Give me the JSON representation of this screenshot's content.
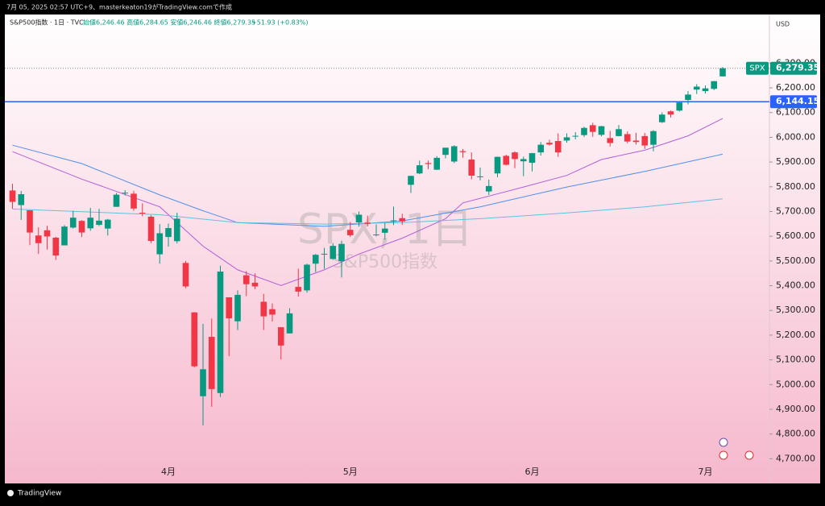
{
  "header": {
    "created": "7月 05, 2025 02:57 UTC+9、masterkeaton19がTradingView.comで作成",
    "symbol_line": "S&P500指数 · 1日 · TVC",
    "ohlc": "始値6,246.46 高値6,284.65 安値6,246.46 終値6,279.35",
    "change": "+51.93 (+0.83%)",
    "currency": "USD",
    "watermark_title": "SPX, 1日",
    "watermark_sub": "S&P500指数",
    "footer": "TradingView"
  },
  "chart_data": {
    "type": "candlestick",
    "up_color": "#089981",
    "down_color": "#f23645",
    "grid": false,
    "categories": [
      null,
      null,
      null,
      null,
      null,
      null,
      null,
      null,
      null,
      null,
      null,
      null,
      null,
      null,
      null,
      null,
      null,
      null,
      "4月",
      null,
      null,
      null,
      null,
      null,
      null,
      null,
      null,
      null,
      null,
      null,
      null,
      null,
      null,
      null,
      null,
      null,
      null,
      null,
      null,
      "5月",
      null,
      null,
      null,
      null,
      null,
      null,
      null,
      null,
      null,
      null,
      null,
      null,
      null,
      null,
      null,
      null,
      null,
      null,
      null,
      null,
      "6月",
      null,
      null,
      null,
      null,
      null,
      null,
      null,
      null,
      null,
      null,
      null,
      null,
      null,
      null,
      null,
      null,
      null,
      null,
      null,
      "7月",
      null,
      null
    ],
    "series": [
      {
        "name": "SPX",
        "open": [
          5785,
          5726,
          5705,
          5603,
          5624,
          5594,
          5563,
          5635,
          5662,
          5632,
          5646,
          5631,
          5719,
          5775,
          5772,
          5695,
          5679,
          5527,
          5597,
          5580,
          5492,
          5292,
          4953,
          5193,
          4966,
          5353,
          5256,
          5442,
          5412,
          5335,
          5305,
          5232,
          5207,
          5395,
          5381,
          5489,
          5529,
          5508,
          5499,
          5626,
          5656,
          5655,
          5606,
          5614,
          5663,
          5673,
          5808,
          5854,
          5896,
          5869,
          5929,
          5902,
          5944,
          5910,
          5842,
          5781,
          5854,
          5925,
          5939,
          5903,
          5897,
          5939,
          5978,
          5985,
          5987,
          6004,
          6009,
          6049,
          6010,
          5997,
          6005,
          6013,
          5987,
          6005,
          5970,
          6061,
          6105,
          6108,
          6151,
          6193,
          6187,
          6196,
          6246.46
        ],
        "high": [
          5812,
          5783,
          5705,
          5636,
          5642,
          5598,
          5645,
          5703,
          5665,
          5715,
          5711,
          5670,
          5775,
          5786,
          5784,
          5733,
          5685,
          5649,
          5651,
          5695,
          5500,
          5293,
          5246,
          5267,
          5481,
          5353,
          5381,
          5459,
          5450,
          5367,
          5328,
          5232,
          5309,
          5469,
          5489,
          5528,
          5553,
          5572,
          5582,
          5658,
          5700,
          5683,
          5648,
          5654,
          5720,
          5691,
          5845,
          5906,
          5906,
          5924,
          5958,
          5968,
          5953,
          5939,
          5878,
          5829,
          5922,
          5930,
          5943,
          5922,
          5937,
          5981,
          5990,
          6016,
          6016,
          6021,
          6043,
          6059,
          6046,
          6026,
          6050,
          6024,
          6018,
          6018,
          6029,
          6101,
          6108,
          6146,
          6187,
          6215,
          6210,
          6228,
          6284.65
        ],
        "low": [
          5711,
          5666,
          5564,
          5528,
          5546,
          5504,
          5563,
          5631,
          5597,
          5622,
          5641,
          5603,
          5719,
          5765,
          5703,
          5681,
          5572,
          5489,
          5558,
          5571,
          5390,
          5069,
          4835,
          4910,
          4950,
          5115,
          5220,
          5358,
          5386,
          5221,
          5255,
          5102,
          5207,
          5356,
          5372,
          5455,
          5468,
          5505,
          5433,
          5597,
          5639,
          5640,
          5599,
          5586,
          5645,
          5646,
          5775,
          5851,
          5871,
          5868,
          5915,
          5896,
          5918,
          5830,
          5826,
          5767,
          5839,
          5886,
          5875,
          5843,
          5862,
          5926,
          5966,
          5921,
          5978,
          5992,
          6001,
          6002,
          6004,
          5963,
          6004,
          5976,
          5971,
          5953,
          5943,
          6058,
          6080,
          6104,
          6133,
          6175,
          6177,
          6191,
          6246.46
        ],
        "close": [
          5739,
          5770,
          5615,
          5572,
          5599,
          5522,
          5639,
          5675,
          5615,
          5675,
          5663,
          5667,
          5768,
          5776,
          5712,
          5693,
          5581,
          5612,
          5633,
          5671,
          5397,
          5074,
          5062,
          4982,
          5457,
          5268,
          5363,
          5406,
          5397,
          5276,
          5283,
          5158,
          5288,
          5376,
          5485,
          5525,
          5529,
          5561,
          5569,
          5604,
          5687,
          5650,
          5607,
          5631,
          5664,
          5660,
          5844,
          5887,
          5892,
          5917,
          5958,
          5964,
          5940,
          5845,
          5842,
          5803,
          5921,
          5889,
          5912,
          5912,
          5936,
          5970,
          5971,
          5939,
          6000,
          6006,
          6038,
          6022,
          6045,
          5977,
          6033,
          5983,
          5981,
          5967,
          6025,
          6092,
          6092,
          6141,
          6173,
          6205,
          6198,
          6227,
          6279.35
        ]
      }
    ],
    "ma_lines": [
      {
        "color": "#b05fd8",
        "x": [
          0,
          8,
          17,
          22,
          26,
          31,
          36,
          40,
          45,
          50,
          52,
          59,
          64,
          68,
          73,
          78,
          82
        ],
        "values": [
          5942,
          5831,
          5719,
          5560,
          5464,
          5401,
          5464,
          5528,
          5592,
          5671,
          5735,
          5799,
          5846,
          5910,
          5948,
          6006,
          6076
        ]
      },
      {
        "color": "#4f8fe8",
        "x": [
          0,
          8,
          17,
          22,
          26,
          36,
          45,
          54,
          64,
          73,
          82
        ],
        "values": [
          5968,
          5894,
          5767,
          5703,
          5655,
          5640,
          5662,
          5719,
          5799,
          5862,
          5932
        ]
      },
      {
        "color": "#5cc3e0",
        "x": [
          0,
          17,
          26,
          36,
          45,
          54,
          64,
          73,
          82
        ],
        "values": [
          5710,
          5687,
          5655,
          5649,
          5655,
          5671,
          5694,
          5719,
          5751
        ]
      }
    ],
    "ylim": [
      4610,
      6425
    ],
    "yticks": [
      {
        "value": 4700,
        "label": "4,700.00"
      },
      {
        "value": 4800,
        "label": "4,800.00"
      },
      {
        "value": 4900,
        "label": "4,900.00"
      },
      {
        "value": 5000,
        "label": "5,000.00"
      },
      {
        "value": 5100,
        "label": "5,100.00"
      },
      {
        "value": 5200,
        "label": "5,200.00"
      },
      {
        "value": 5300,
        "label": "5,300.00"
      },
      {
        "value": 5400,
        "label": "5,400.00"
      },
      {
        "value": 5500,
        "label": "5,500.00"
      },
      {
        "value": 5600,
        "label": "5,600.00"
      },
      {
        "value": 5700,
        "label": "5,700.00"
      },
      {
        "value": 5800,
        "label": "5,800.00"
      },
      {
        "value": 5900,
        "label": "5,900.00"
      },
      {
        "value": 6000,
        "label": "6,000.00"
      },
      {
        "value": 6100,
        "label": "6,100.00"
      },
      {
        "value": 6200,
        "label": "6,200.00"
      },
      {
        "value": 6300,
        "label": "6,300.00"
      }
    ],
    "last_price": {
      "symbol": "SPX",
      "value": 6279.35,
      "label": "6,279.35",
      "color": "#089981"
    },
    "hline": {
      "value": 6144.15,
      "label": "6,144.15",
      "color": "#2962ff"
    }
  }
}
